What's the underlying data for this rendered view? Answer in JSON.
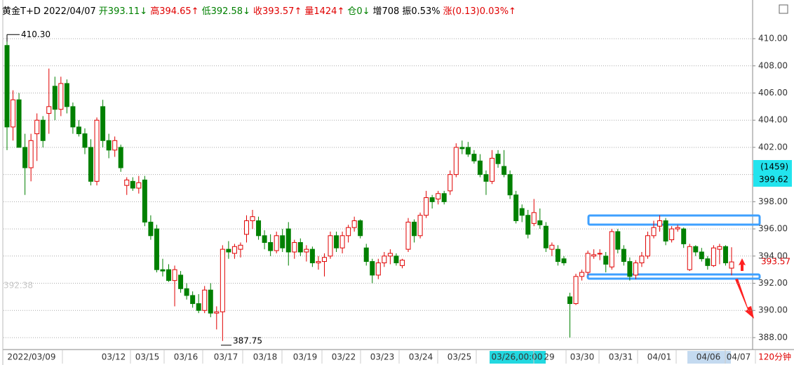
{
  "chart_data": {
    "type": "candlestick",
    "header": [
      {
        "text": "黄金T+D",
        "color": "#000000"
      },
      {
        "text": "2022/04/07",
        "color": "#000000"
      },
      {
        "text": "开393.11↓",
        "color": "#008000"
      },
      {
        "text": "高394.65↑",
        "color": "#e00000"
      },
      {
        "text": "低392.58↓",
        "color": "#008000"
      },
      {
        "text": "收393.57↑",
        "color": "#e00000"
      },
      {
        "text": "量1424↑",
        "color": "#e00000"
      },
      {
        "text": "仓0↓",
        "color": "#008000"
      },
      {
        "text": "增708",
        "color": "#000000"
      },
      {
        "text": "振0.53%",
        "color": "#000000"
      },
      {
        "text": "涨(0.13)0.03%↑",
        "color": "#e00000"
      }
    ],
    "x_labels": [
      "2022/03/09",
      "03/12",
      "03/15",
      "03/16",
      "03/17",
      "03/18",
      "03/19",
      "03/22",
      "03/23",
      "03/24",
      "03/25",
      "03/26,00:00",
      "29",
      "03/30",
      "03/31",
      "04/01",
      "04/06",
      "04/07"
    ],
    "period": "120分钟",
    "ylim": [
      387.12,
      412.07
    ],
    "yticks": [
      {
        "value": 388,
        "label": "388.00"
      },
      {
        "value": 390,
        "label": "390.00"
      },
      {
        "value": 392,
        "label": "392.00"
      },
      {
        "value": 394,
        "label": "394.00"
      },
      {
        "value": 396,
        "label": "396.00"
      },
      {
        "value": 398,
        "label": "398.00"
      },
      {
        "value": 400,
        "label": "400.00"
      },
      {
        "value": 402,
        "label": "402.00"
      },
      {
        "value": 404,
        "label": "404.00"
      },
      {
        "value": 406,
        "label": "406.00"
      },
      {
        "value": 408,
        "label": "408.00"
      },
      {
        "value": 410,
        "label": "410.00"
      }
    ],
    "grid": true,
    "up_color": "#e00000",
    "down_color": "#008000",
    "high_label": {
      "value": 410.3,
      "label": "410.30"
    },
    "low_label": 387.75,
    "left_price": 392.38,
    "last_price": 393.57,
    "cursor_count": "(1459)",
    "cursor_price": 399.62,
    "candles": [
      [
        409.5,
        410.3,
        401.8,
        403.5
      ],
      [
        403.5,
        406.2,
        402.5,
        405.5
      ],
      [
        405.5,
        406,
        402,
        402
      ],
      [
        402,
        403,
        398.5,
        400.5
      ],
      [
        400.5,
        403,
        399.5,
        402.5
      ],
      [
        403,
        404.5,
        401,
        404
      ],
      [
        404,
        404.3,
        402,
        402.5
      ],
      [
        404.5,
        407.8,
        403,
        405
      ],
      [
        406.5,
        407.2,
        404,
        404.8
      ],
      [
        404.8,
        407.2,
        404.3,
        406.7
      ],
      [
        406.7,
        407,
        404.5,
        405
      ],
      [
        405,
        405.3,
        403,
        403.5
      ],
      [
        403.5,
        404,
        402.8,
        403
      ],
      [
        403,
        403.4,
        401.5,
        402
      ],
      [
        402,
        402.6,
        399.2,
        399.5
      ],
      [
        399.5,
        404.2,
        399.2,
        404
      ],
      [
        405,
        405.5,
        402,
        402.5
      ],
      [
        402.5,
        403,
        401.2,
        401.8
      ],
      [
        401.8,
        402.8,
        401.3,
        402.5
      ],
      [
        402,
        402.2,
        400.2,
        400.5
      ],
      [
        399.2,
        399.8,
        398.5,
        399.6
      ],
      [
        399.5,
        399.8,
        398.8,
        399
      ],
      [
        399,
        399.9,
        398.6,
        399.4
      ],
      [
        399.6,
        399.9,
        396.2,
        396.5
      ],
      [
        396.5,
        397,
        395.2,
        395.5
      ],
      [
        396,
        396.3,
        392.8,
        393
      ],
      [
        393,
        393.8,
        392.5,
        392.9
      ],
      [
        393,
        393.4,
        392.1,
        392.2
      ],
      [
        392.2,
        393.3,
        390.3,
        393
      ],
      [
        392.6,
        392.9,
        391.3,
        391.6
      ],
      [
        391.6,
        392,
        390.8,
        391.1
      ],
      [
        391.1,
        391.4,
        390.2,
        390.5
      ],
      [
        390.5,
        391.2,
        389.8,
        390
      ],
      [
        390,
        391.8,
        389.8,
        391.5
      ],
      [
        391.5,
        392,
        389.5,
        389.8
      ],
      [
        389.8,
        390.3,
        388.6,
        389.9
      ],
      [
        389.9,
        394.8,
        387.75,
        394.5
      ],
      [
        394.5,
        395.1,
        393.8,
        394.3
      ],
      [
        394.2,
        394.9,
        393.8,
        394.7
      ],
      [
        394.5,
        395,
        393.9,
        394.8
      ],
      [
        395.6,
        397,
        395,
        396.6
      ],
      [
        396.6,
        397.4,
        396,
        396.9
      ],
      [
        396.6,
        396.9,
        395.2,
        395.5
      ],
      [
        395.5,
        395.9,
        394.5,
        395
      ],
      [
        395,
        395.6,
        394,
        394.4
      ],
      [
        394.4,
        395.8,
        394.2,
        395.5
      ],
      [
        395.5,
        396,
        394.3,
        394.6
      ],
      [
        396,
        396.5,
        393.3,
        394.3
      ],
      [
        394.3,
        395.2,
        393.8,
        395
      ],
      [
        395,
        395.3,
        394,
        394.3
      ],
      [
        394.3,
        394.8,
        393.6,
        394.5
      ],
      [
        394.5,
        394.7,
        393.2,
        393.5
      ],
      [
        393.5,
        394,
        393,
        393.6
      ],
      [
        393.6,
        394.2,
        392.5,
        393.9
      ],
      [
        394,
        395.8,
        393.8,
        395.5
      ],
      [
        395.5,
        395.8,
        394.3,
        394.6
      ],
      [
        394.6,
        395.8,
        394.2,
        395.5
      ],
      [
        395.5,
        396.3,
        395,
        396.1
      ],
      [
        396.1,
        396.9,
        395.8,
        396.6
      ],
      [
        396.6,
        396.7,
        395.3,
        395.5
      ],
      [
        394.6,
        394.9,
        393.3,
        393.6
      ],
      [
        393.6,
        393.8,
        392,
        392.6
      ],
      [
        392.6,
        393.8,
        392.3,
        393.5
      ],
      [
        393.5,
        394.3,
        393.2,
        394
      ],
      [
        394,
        394.5,
        393.4,
        394.2
      ],
      [
        394,
        394.2,
        393.3,
        393.5
      ],
      [
        393.3,
        393.8,
        393.1,
        393.7
      ],
      [
        394.5,
        396.8,
        394.3,
        396.5
      ],
      [
        396.5,
        396.7,
        395,
        395.5
      ],
      [
        395.5,
        397.2,
        395.3,
        397
      ],
      [
        397,
        398.8,
        396.8,
        398.3
      ],
      [
        398.3,
        398.5,
        397.5,
        398
      ],
      [
        398.2,
        398.8,
        397.8,
        398.6
      ],
      [
        398.6,
        398.8,
        397.8,
        398
      ],
      [
        398.8,
        400.3,
        398.5,
        400
      ],
      [
        400,
        402.3,
        399.8,
        402
      ],
      [
        402,
        402.5,
        401.5,
        401.9
      ],
      [
        402,
        402.4,
        401.3,
        401.5
      ],
      [
        401.5,
        401.8,
        400.8,
        401
      ],
      [
        401,
        401.5,
        399.8,
        400
      ],
      [
        400,
        400.3,
        398.5,
        399.5
      ],
      [
        399.5,
        401.8,
        399.3,
        401.2
      ],
      [
        401.5,
        401.8,
        400.5,
        400.8
      ],
      [
        400.6,
        401.8,
        399.8,
        400
      ],
      [
        400,
        400.3,
        398.2,
        398.5
      ],
      [
        398.5,
        398.8,
        396.4,
        396.6
      ],
      [
        397.5,
        397.8,
        396.5,
        397
      ],
      [
        397,
        397.4,
        395.3,
        395.6
      ],
      [
        396.4,
        398.2,
        396.2,
        397.2
      ],
      [
        396.6,
        397.5,
        396,
        396.3
      ],
      [
        396.2,
        396.5,
        394.3,
        394.6
      ],
      [
        394.5,
        395,
        394,
        394.8
      ],
      [
        394.5,
        394.8,
        393.3,
        393.6
      ],
      [
        393.8,
        394,
        393.3,
        393.5
      ],
      [
        391,
        391.3,
        388,
        390.5
      ],
      [
        390.5,
        392.7,
        390.4,
        392.5
      ],
      [
        392.5,
        393,
        392.2,
        392.8
      ],
      [
        392.8,
        394.4,
        392.6,
        394.2
      ],
      [
        394,
        394.5,
        393.8,
        394.1
      ],
      [
        394.2,
        394.5,
        393.7,
        394.2
      ],
      [
        394,
        394.3,
        392.8,
        393.4
      ],
      [
        393.2,
        396,
        393,
        395.8
      ],
      [
        395.8,
        396,
        394.2,
        394.5
      ],
      [
        394.5,
        394.8,
        393.3,
        393.6
      ],
      [
        393.6,
        393.9,
        392.2,
        392.5
      ],
      [
        392.6,
        393.7,
        392.3,
        393.5
      ],
      [
        393.5,
        394.3,
        393.2,
        394
      ],
      [
        394,
        395.8,
        393.8,
        395.5
      ],
      [
        395.5,
        396.6,
        395.3,
        396.1
      ],
      [
        396.2,
        397,
        395.8,
        396.6
      ],
      [
        396.6,
        396.8,
        394.8,
        395.1
      ],
      [
        395.2,
        396.2,
        395,
        396
      ],
      [
        396,
        396.3,
        395.8,
        396.1
      ],
      [
        396,
        396.1,
        394.6,
        394.9
      ],
      [
        393,
        394.9,
        392.9,
        394.7
      ],
      [
        394.7,
        394.8,
        394,
        394.3
      ],
      [
        394.3,
        394.6,
        393.6,
        393.8
      ],
      [
        393.8,
        394,
        393,
        393.3
      ],
      [
        393.3,
        394.8,
        393.2,
        394.6
      ],
      [
        394.5,
        394.9,
        393.4,
        394.7
      ],
      [
        394.7,
        394.8,
        393.3,
        393.5
      ],
      [
        393.11,
        394.65,
        392.58,
        393.57
      ]
    ]
  }
}
